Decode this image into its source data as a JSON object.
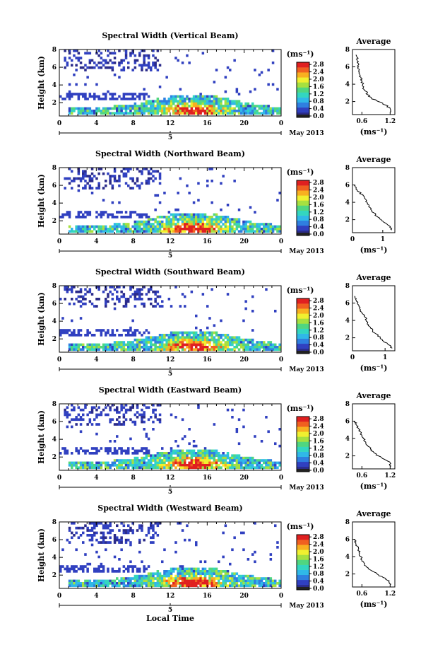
{
  "figure": {
    "xlabel": "Local Time",
    "ylabel": "Height (km)",
    "date_label": "May 2013",
    "day_marker": "5",
    "colorbar_unit": "(ms⁻¹)",
    "avg_title": "Average",
    "avg_xlabel": "(ms⁻¹)"
  },
  "colors": {
    "colormap": [
      "#2b2b8a",
      "#3040c0",
      "#2f7fe0",
      "#30b8e8",
      "#33d6c0",
      "#50d680",
      "#a6e040",
      "#f0f030",
      "#f8b020",
      "#f06020",
      "#e02020"
    ],
    "axis": "#000000"
  },
  "chart_data": [
    {
      "type": "heatmap",
      "title": "Spectral Width (Vertical Beam)",
      "x_ticks": [
        "0",
        "4",
        "8",
        "12",
        "16",
        "20",
        "0"
      ],
      "x_range": [
        0,
        24
      ],
      "y_ticks": [
        "2",
        "4",
        "6",
        "8"
      ],
      "y_range": [
        0.5,
        8
      ],
      "colorbar": {
        "ticks": [
          "0.0",
          "0.4",
          "0.8",
          "1.2",
          "1.6",
          "2.0",
          "2.4",
          "2.8"
        ],
        "range": [
          0,
          3.0
        ]
      },
      "average": {
        "x_ticks": [
          "0.6",
          "1.2"
        ],
        "x_range": [
          0.4,
          1.3
        ],
        "y_ticks": [
          "2",
          "4",
          "6",
          "8"
        ],
        "profile": [
          [
            1.22,
            0.8
          ],
          [
            1.2,
            1.2
          ],
          [
            1.1,
            1.6
          ],
          [
            0.95,
            2.0
          ],
          [
            0.8,
            2.4
          ],
          [
            0.72,
            2.8
          ],
          [
            0.68,
            3.2
          ],
          [
            0.63,
            3.6
          ],
          [
            0.62,
            4.0
          ],
          [
            0.6,
            4.4
          ],
          [
            0.58,
            4.8
          ],
          [
            0.55,
            5.2
          ],
          [
            0.54,
            5.6
          ],
          [
            0.53,
            6.0
          ],
          [
            0.52,
            6.4
          ],
          [
            0.5,
            6.8
          ],
          [
            0.49,
            7.2
          ],
          [
            0.48,
            7.4
          ]
        ]
      }
    },
    {
      "type": "heatmap",
      "title": "Spectral Width (Northward Beam)",
      "x_ticks": [
        "0",
        "4",
        "8",
        "12",
        "16",
        "20",
        "0"
      ],
      "x_range": [
        0,
        24
      ],
      "y_ticks": [
        "2",
        "4",
        "6",
        "8"
      ],
      "y_range": [
        0.5,
        8
      ],
      "colorbar": {
        "ticks": [
          "0.0",
          "0.4",
          "0.8",
          "1.2",
          "1.6",
          "2.0",
          "2.4",
          "2.8"
        ],
        "range": [
          0,
          3.0
        ]
      },
      "average": {
        "x_ticks": [
          "0",
          "1"
        ],
        "x_range": [
          0,
          1.4
        ],
        "y_ticks": [
          "2",
          "4",
          "6",
          "8"
        ],
        "profile": [
          [
            1.3,
            0.8
          ],
          [
            1.25,
            1.2
          ],
          [
            1.1,
            1.6
          ],
          [
            0.95,
            2.0
          ],
          [
            0.8,
            2.4
          ],
          [
            0.7,
            2.8
          ],
          [
            0.6,
            3.2
          ],
          [
            0.55,
            3.6
          ],
          [
            0.48,
            4.0
          ],
          [
            0.42,
            4.4
          ],
          [
            0.35,
            4.8
          ],
          [
            0.22,
            5.2
          ],
          [
            0.12,
            5.6
          ],
          [
            0.05,
            6.0
          ]
        ]
      }
    },
    {
      "type": "heatmap",
      "title": "Spectral Width (Southward Beam)",
      "x_ticks": [
        "0",
        "4",
        "8",
        "12",
        "16",
        "20",
        "0"
      ],
      "x_range": [
        0,
        24
      ],
      "y_ticks": [
        "2",
        "4",
        "6",
        "8"
      ],
      "y_range": [
        0.5,
        8
      ],
      "colorbar": {
        "ticks": [
          "0.0",
          "0.4",
          "0.8",
          "1.2",
          "1.6",
          "2.0",
          "2.4",
          "2.8"
        ],
        "range": [
          0,
          3.0
        ]
      },
      "average": {
        "x_ticks": [
          "0",
          "1"
        ],
        "x_range": [
          0,
          1.3
        ],
        "y_ticks": [
          "2",
          "4",
          "6",
          "8"
        ],
        "profile": [
          [
            1.22,
            0.8
          ],
          [
            1.1,
            1.2
          ],
          [
            0.95,
            1.6
          ],
          [
            0.85,
            2.0
          ],
          [
            0.75,
            2.4
          ],
          [
            0.62,
            2.8
          ],
          [
            0.55,
            3.2
          ],
          [
            0.45,
            3.6
          ],
          [
            0.42,
            4.0
          ],
          [
            0.38,
            4.4
          ],
          [
            0.3,
            4.8
          ],
          [
            0.25,
            5.2
          ],
          [
            0.2,
            5.6
          ],
          [
            0.15,
            6.0
          ],
          [
            0.1,
            6.4
          ],
          [
            0.06,
            6.8
          ]
        ]
      }
    },
    {
      "type": "heatmap",
      "title": "Spectral Width (Eastward Beam)",
      "x_ticks": [
        "0",
        "4",
        "8",
        "12",
        "16",
        "20",
        "0"
      ],
      "x_range": [
        0,
        24
      ],
      "y_ticks": [
        "2",
        "4",
        "6",
        "8"
      ],
      "y_range": [
        0.5,
        8
      ],
      "colorbar": {
        "ticks": [
          "0.0",
          "0.4",
          "0.8",
          "1.2",
          "1.6",
          "2.0",
          "2.4",
          "2.8"
        ],
        "range": [
          0,
          3.0
        ]
      },
      "average": {
        "x_ticks": [
          "0.6",
          "1.2"
        ],
        "x_range": [
          0.4,
          1.3
        ],
        "y_ticks": [
          "2",
          "4",
          "6",
          "8"
        ],
        "profile": [
          [
            1.22,
            0.8
          ],
          [
            1.2,
            1.2
          ],
          [
            1.08,
            1.6
          ],
          [
            0.95,
            2.0
          ],
          [
            0.85,
            2.4
          ],
          [
            0.78,
            2.8
          ],
          [
            0.72,
            3.2
          ],
          [
            0.68,
            3.6
          ],
          [
            0.63,
            4.0
          ],
          [
            0.6,
            4.4
          ],
          [
            0.56,
            4.8
          ],
          [
            0.52,
            5.2
          ],
          [
            0.48,
            5.6
          ],
          [
            0.44,
            6.0
          ]
        ]
      }
    },
    {
      "type": "heatmap",
      "title": "Spectral Width (Westward Beam)",
      "x_ticks": [
        "0",
        "4",
        "8",
        "12",
        "16",
        "20",
        "0"
      ],
      "x_range": [
        0,
        24
      ],
      "y_ticks": [
        "2",
        "4",
        "6",
        "8"
      ],
      "y_range": [
        0.5,
        8
      ],
      "colorbar": {
        "ticks": [
          "0.0",
          "0.4",
          "0.8",
          "1.2",
          "1.6",
          "2.0",
          "2.4",
          "2.8"
        ],
        "range": [
          0,
          3.0
        ]
      },
      "average": {
        "x_ticks": [
          "0.6",
          "1.2"
        ],
        "x_range": [
          0.4,
          1.3
        ],
        "y_ticks": [
          "2",
          "4",
          "6",
          "8"
        ],
        "profile": [
          [
            1.22,
            0.8
          ],
          [
            1.18,
            1.2
          ],
          [
            1.05,
            1.6
          ],
          [
            0.92,
            2.0
          ],
          [
            0.8,
            2.4
          ],
          [
            0.7,
            2.8
          ],
          [
            0.66,
            3.2
          ],
          [
            0.6,
            3.6
          ],
          [
            0.58,
            4.0
          ],
          [
            0.55,
            4.4
          ],
          [
            0.52,
            4.8
          ],
          [
            0.5,
            5.2
          ],
          [
            0.47,
            5.6
          ],
          [
            0.45,
            6.0
          ]
        ]
      }
    }
  ]
}
